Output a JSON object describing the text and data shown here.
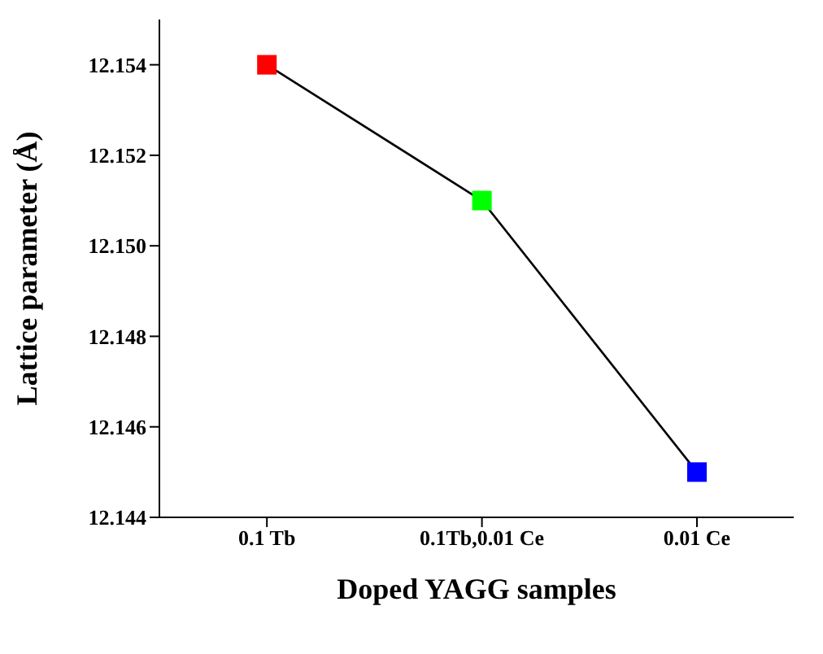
{
  "chart_data": {
    "type": "line",
    "xlabel": "Doped YAGG samples",
    "ylabel": "Lattice parameter (Å)",
    "categories": [
      "0.1 Tb",
      "0.1Tb,0.01 Ce",
      "0.01 Ce"
    ],
    "series": [
      {
        "color": "#000000",
        "colors": [
          "#ff0000",
          "#00ff00",
          "#0000ff"
        ],
        "values": [
          12.154,
          12.151,
          12.145
        ]
      }
    ],
    "ylim": [
      12.144,
      12.155
    ],
    "yticks": [
      12.144,
      12.146,
      12.148,
      {
        "value": 12.15,
        "label": "12.150"
      },
      12.152,
      12.154
    ],
    "marker": "square",
    "line_style": "solid",
    "grid": false,
    "legend": false
  }
}
